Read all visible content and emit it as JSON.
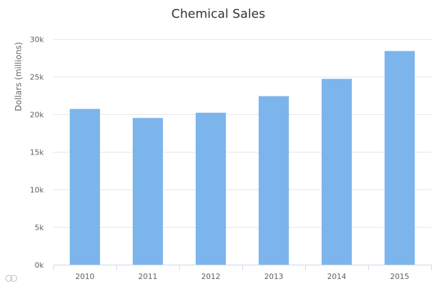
{
  "chart_data": {
    "type": "bar",
    "title": "Chemical Sales",
    "xlabel": "",
    "ylabel": "Dollars (millions)",
    "categories": [
      "2010",
      "2011",
      "2012",
      "2013",
      "2014",
      "2015"
    ],
    "values": [
      20700,
      19500,
      20200,
      22400,
      24700,
      28400
    ],
    "ylim": [
      0,
      30000
    ],
    "yticks": [
      0,
      5000,
      10000,
      15000,
      20000,
      25000,
      30000
    ],
    "ytick_labels": [
      "0k",
      "5k",
      "10k",
      "15k",
      "20k",
      "25k",
      "30k"
    ],
    "grid": true,
    "legend": "none",
    "bar_color": "#7cb5ec"
  },
  "watermark": {
    "logo": "大数据魔镜"
  }
}
